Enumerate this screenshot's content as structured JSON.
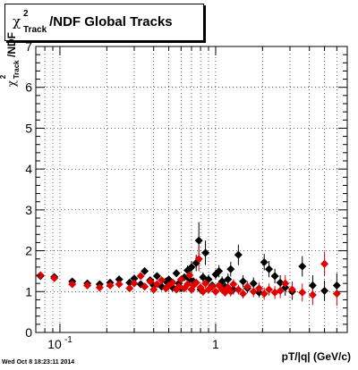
{
  "title": {
    "chi": "χ",
    "sup": "2",
    "sub": "Track",
    "rest": "/NDF  Global Tracks"
  },
  "ylabel": {
    "chi": "χ",
    "sup": "2",
    "sub": "Track",
    "rest": "/NDF"
  },
  "xlabel": "pT/|q| (GeV/c)",
  "timestamp": "Wed Oct  8 18:23:11 2014",
  "chart_data": {
    "type": "scatter",
    "xscale": "log",
    "xlim": [
      0.07,
      7
    ],
    "ylim": [
      0,
      7
    ],
    "x_tick_labels": [
      {
        "value": 0.1,
        "label": "10",
        "sup": "-1"
      },
      {
        "value": 1,
        "label": "1",
        "sup": ""
      }
    ],
    "y_ticks": [
      0,
      1,
      2,
      3,
      4,
      5,
      6,
      7
    ],
    "grid": true,
    "series": [
      {
        "color": "#000000",
        "marker": "diamond",
        "points": [
          {
            "x": 0.075,
            "y": 1.38,
            "e": 0.06
          },
          {
            "x": 0.092,
            "y": 1.36,
            "e": 0.05
          },
          {
            "x": 0.12,
            "y": 1.25,
            "e": 0.05
          },
          {
            "x": 0.15,
            "y": 1.2,
            "e": 0.05
          },
          {
            "x": 0.18,
            "y": 1.18,
            "e": 0.05
          },
          {
            "x": 0.21,
            "y": 1.22,
            "e": 0.05
          },
          {
            "x": 0.24,
            "y": 1.3,
            "e": 0.05
          },
          {
            "x": 0.28,
            "y": 1.22,
            "e": 0.05
          },
          {
            "x": 0.3,
            "y": 1.32,
            "e": 0.06
          },
          {
            "x": 0.33,
            "y": 1.18,
            "e": 0.05
          },
          {
            "x": 0.35,
            "y": 1.5,
            "e": 0.08
          },
          {
            "x": 0.38,
            "y": 1.28,
            "e": 0.06
          },
          {
            "x": 0.4,
            "y": 1.15,
            "e": 0.06
          },
          {
            "x": 0.42,
            "y": 1.38,
            "e": 0.07
          },
          {
            "x": 0.45,
            "y": 1.12,
            "e": 0.06
          },
          {
            "x": 0.48,
            "y": 1.25,
            "e": 0.07
          },
          {
            "x": 0.5,
            "y": 1.3,
            "e": 0.07
          },
          {
            "x": 0.53,
            "y": 1.1,
            "e": 0.07
          },
          {
            "x": 0.56,
            "y": 1.45,
            "e": 0.08
          },
          {
            "x": 0.58,
            "y": 1.2,
            "e": 0.07
          },
          {
            "x": 0.6,
            "y": 1.08,
            "e": 0.07
          },
          {
            "x": 0.63,
            "y": 1.35,
            "e": 0.09
          },
          {
            "x": 0.66,
            "y": 1.52,
            "e": 0.12
          },
          {
            "x": 0.68,
            "y": 1.3,
            "e": 0.1
          },
          {
            "x": 0.7,
            "y": 1.6,
            "e": 0.15
          },
          {
            "x": 0.72,
            "y": 1.25,
            "e": 0.1
          },
          {
            "x": 0.75,
            "y": 1.7,
            "e": 0.2
          },
          {
            "x": 0.78,
            "y": 2.25,
            "e": 0.45
          },
          {
            "x": 0.8,
            "y": 1.05,
            "e": 0.1
          },
          {
            "x": 0.83,
            "y": 1.35,
            "e": 0.12
          },
          {
            "x": 0.86,
            "y": 1.95,
            "e": 0.3
          },
          {
            "x": 0.9,
            "y": 1.3,
            "e": 0.12
          },
          {
            "x": 0.95,
            "y": 1.15,
            "e": 0.1
          },
          {
            "x": 1.0,
            "y": 1.42,
            "e": 0.12
          },
          {
            "x": 1.05,
            "y": 1.5,
            "e": 0.15
          },
          {
            "x": 1.1,
            "y": 1.25,
            "e": 0.12
          },
          {
            "x": 1.15,
            "y": 1.12,
            "e": 0.1
          },
          {
            "x": 1.2,
            "y": 1.3,
            "e": 0.14
          },
          {
            "x": 1.25,
            "y": 1.55,
            "e": 0.18
          },
          {
            "x": 1.3,
            "y": 1.05,
            "e": 0.12
          },
          {
            "x": 1.4,
            "y": 1.9,
            "e": 0.25
          },
          {
            "x": 1.5,
            "y": 1.25,
            "e": 0.15
          },
          {
            "x": 1.6,
            "y": 1.08,
            "e": 0.12
          },
          {
            "x": 1.75,
            "y": 1.2,
            "e": 0.15
          },
          {
            "x": 1.9,
            "y": 0.98,
            "e": 0.12
          },
          {
            "x": 2.05,
            "y": 1.72,
            "e": 0.2
          },
          {
            "x": 2.2,
            "y": 1.55,
            "e": 0.2
          },
          {
            "x": 2.4,
            "y": 1.38,
            "e": 0.18
          },
          {
            "x": 2.6,
            "y": 1.22,
            "e": 0.18
          },
          {
            "x": 2.8,
            "y": 1.1,
            "e": 0.2
          },
          {
            "x": 3.1,
            "y": 1.0,
            "e": 0.2
          },
          {
            "x": 3.6,
            "y": 1.62,
            "e": 0.25
          },
          {
            "x": 4.2,
            "y": 1.15,
            "e": 0.25
          },
          {
            "x": 5.0,
            "y": 1.02,
            "e": 0.25
          },
          {
            "x": 6.0,
            "y": 1.15,
            "e": 0.3
          }
        ]
      },
      {
        "color": "#e00000",
        "marker": "diamond",
        "points": [
          {
            "x": 0.075,
            "y": 1.4,
            "e": 0.05
          },
          {
            "x": 0.092,
            "y": 1.33,
            "e": 0.05
          },
          {
            "x": 0.12,
            "y": 1.18,
            "e": 0.05
          },
          {
            "x": 0.15,
            "y": 1.15,
            "e": 0.05
          },
          {
            "x": 0.18,
            "y": 1.1,
            "e": 0.05
          },
          {
            "x": 0.21,
            "y": 1.15,
            "e": 0.05
          },
          {
            "x": 0.24,
            "y": 1.18,
            "e": 0.05
          },
          {
            "x": 0.28,
            "y": 1.08,
            "e": 0.05
          },
          {
            "x": 0.3,
            "y": 1.2,
            "e": 0.05
          },
          {
            "x": 0.33,
            "y": 1.38,
            "e": 0.06
          },
          {
            "x": 0.35,
            "y": 1.12,
            "e": 0.05
          },
          {
            "x": 0.38,
            "y": 1.25,
            "e": 0.06
          },
          {
            "x": 0.4,
            "y": 1.05,
            "e": 0.05
          },
          {
            "x": 0.42,
            "y": 1.18,
            "e": 0.06
          },
          {
            "x": 0.45,
            "y": 1.28,
            "e": 0.06
          },
          {
            "x": 0.48,
            "y": 1.08,
            "e": 0.06
          },
          {
            "x": 0.5,
            "y": 1.15,
            "e": 0.06
          },
          {
            "x": 0.53,
            "y": 1.22,
            "e": 0.07
          },
          {
            "x": 0.56,
            "y": 1.05,
            "e": 0.06
          },
          {
            "x": 0.58,
            "y": 1.12,
            "e": 0.07
          },
          {
            "x": 0.6,
            "y": 1.3,
            "e": 0.08
          },
          {
            "x": 0.63,
            "y": 1.08,
            "e": 0.07
          },
          {
            "x": 0.66,
            "y": 1.18,
            "e": 0.08
          },
          {
            "x": 0.68,
            "y": 1.4,
            "e": 0.1
          },
          {
            "x": 0.7,
            "y": 1.05,
            "e": 0.08
          },
          {
            "x": 0.72,
            "y": 1.15,
            "e": 0.09
          },
          {
            "x": 0.75,
            "y": 1.22,
            "e": 0.1
          },
          {
            "x": 0.78,
            "y": 1.8,
            "e": 0.3
          },
          {
            "x": 0.8,
            "y": 1.1,
            "e": 0.1
          },
          {
            "x": 0.83,
            "y": 1.0,
            "e": 0.1
          },
          {
            "x": 0.86,
            "y": 1.2,
            "e": 0.12
          },
          {
            "x": 0.9,
            "y": 1.05,
            "e": 0.1
          },
          {
            "x": 0.95,
            "y": 1.12,
            "e": 0.1
          },
          {
            "x": 1.0,
            "y": 1.0,
            "e": 0.1
          },
          {
            "x": 1.05,
            "y": 1.15,
            "e": 0.12
          },
          {
            "x": 1.1,
            "y": 1.05,
            "e": 0.1
          },
          {
            "x": 1.15,
            "y": 0.98,
            "e": 0.1
          },
          {
            "x": 1.2,
            "y": 1.1,
            "e": 0.12
          },
          {
            "x": 1.25,
            "y": 1.0,
            "e": 0.12
          },
          {
            "x": 1.3,
            "y": 1.18,
            "e": 0.12
          },
          {
            "x": 1.4,
            "y": 1.05,
            "e": 0.12
          },
          {
            "x": 1.5,
            "y": 0.95,
            "e": 0.12
          },
          {
            "x": 1.6,
            "y": 1.12,
            "e": 0.14
          },
          {
            "x": 1.75,
            "y": 1.0,
            "e": 0.14
          },
          {
            "x": 1.9,
            "y": 1.08,
            "e": 0.14
          },
          {
            "x": 2.05,
            "y": 0.95,
            "e": 0.15
          },
          {
            "x": 2.2,
            "y": 1.05,
            "e": 0.15
          },
          {
            "x": 2.4,
            "y": 0.98,
            "e": 0.16
          },
          {
            "x": 2.6,
            "y": 1.02,
            "e": 0.18
          },
          {
            "x": 2.8,
            "y": 1.2,
            "e": 0.2
          },
          {
            "x": 3.1,
            "y": 1.05,
            "e": 0.2
          },
          {
            "x": 3.6,
            "y": 0.98,
            "e": 0.22
          },
          {
            "x": 4.2,
            "y": 0.92,
            "e": 0.25
          },
          {
            "x": 5.0,
            "y": 1.68,
            "e": 0.3
          },
          {
            "x": 6.0,
            "y": 0.95,
            "e": 0.3
          }
        ]
      }
    ]
  }
}
